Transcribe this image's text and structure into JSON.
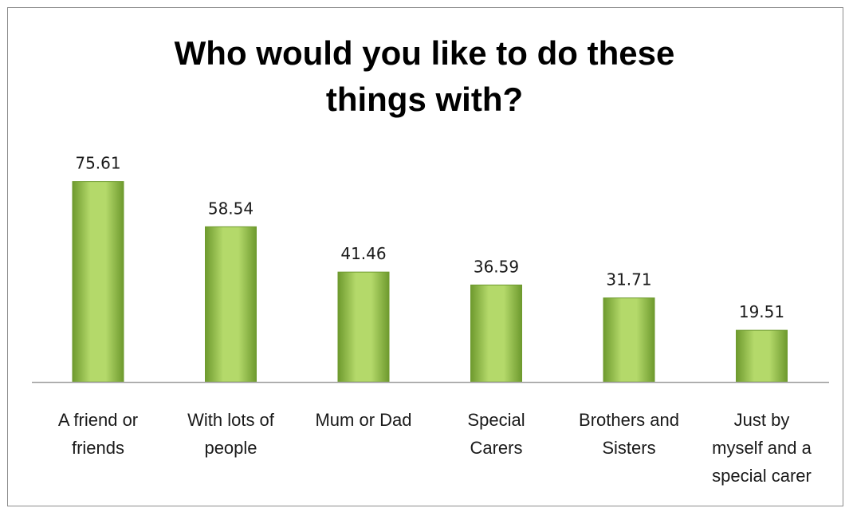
{
  "chart_data": {
    "type": "bar",
    "title_lines": [
      "Who would you like to do these",
      "things with?"
    ],
    "categories": [
      [
        "A friend or",
        "friends"
      ],
      [
        "With lots of",
        "people"
      ],
      [
        "Mum or Dad"
      ],
      [
        "Special",
        "Carers"
      ],
      [
        "Brothers and",
        "Sisters"
      ],
      [
        "Just by",
        "myself and a",
        "special carer"
      ]
    ],
    "values": [
      75.61,
      58.54,
      41.46,
      36.59,
      31.71,
      19.51
    ],
    "value_labels": [
      "75.61",
      "58.54",
      "41.46",
      "36.59",
      "31.71",
      "19.51"
    ],
    "xlabel": "",
    "ylabel": "",
    "ylim": [
      0,
      80
    ],
    "grid": false,
    "legend": "none",
    "bar_color_light": "#b4d96a",
    "bar_color_dark": "#6e9a2e",
    "axis_color": "#a6a6a6"
  }
}
